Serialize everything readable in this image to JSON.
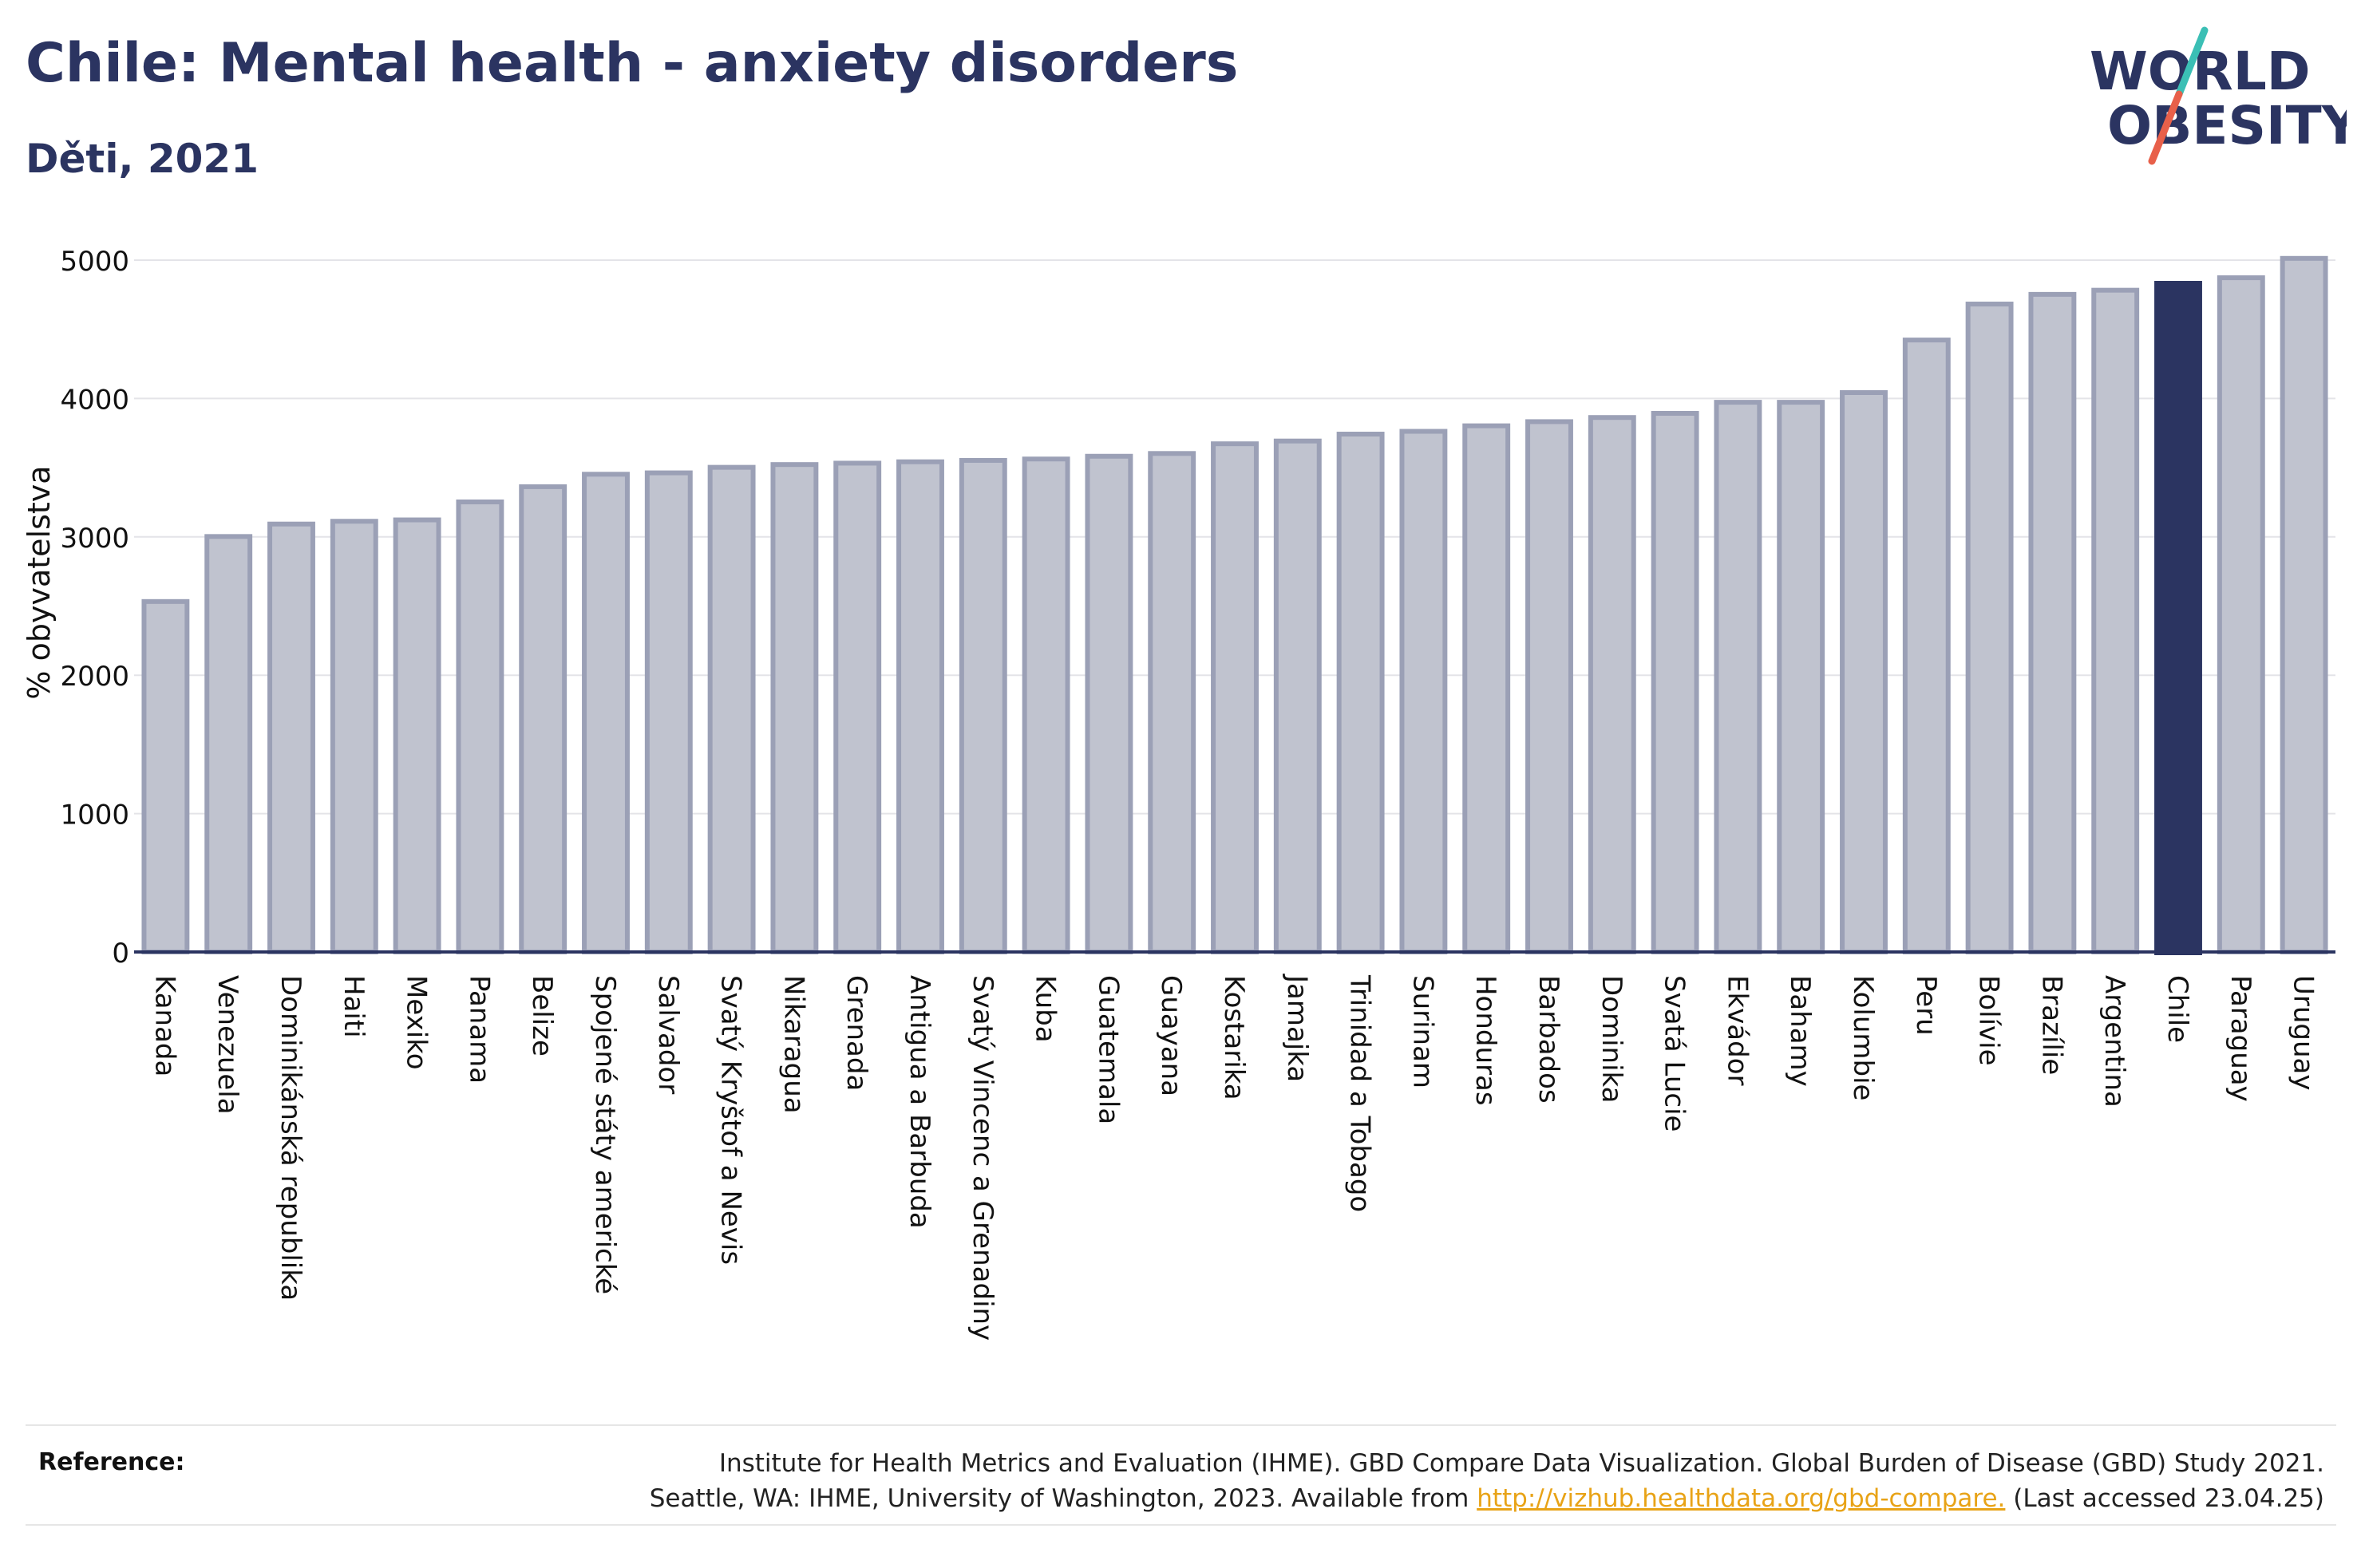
{
  "title": "Chile: Mental health - anxiety disorders",
  "subtitle": "Děti, 2021",
  "logo": {
    "line1": "WORLD",
    "line2": "OBESITY"
  },
  "colors": {
    "bar": "#c0c3cf",
    "bar_border": "#9ba0b6",
    "highlight": "#2b3461",
    "title": "#2b3461",
    "logo_text": "#2b3461",
    "logo_slash_teal": "#3bbfb5",
    "logo_slash_coral": "#e8604a",
    "link": "#e8a317"
  },
  "chart_data": {
    "type": "bar",
    "ylabel": "% obyvatelstva",
    "xlabel": "",
    "ylim": [
      0,
      5200
    ],
    "yticks": [
      0,
      1000,
      2000,
      3000,
      4000,
      5000
    ],
    "grid": true,
    "highlight": "Chile",
    "categories": [
      "Kanada",
      "Venezuela",
      "Dominikánská republika",
      "Haiti",
      "Mexiko",
      "Panama",
      "Belize",
      "Spojené státy americké",
      "Salvador",
      "Svatý Kryštof a Nevis",
      "Nikaragua",
      "Grenada",
      "Antigua a Barbuda",
      "Svatý Vincenc a Grenadiny",
      "Kuba",
      "Guatemala",
      "Guayana",
      "Kostarika",
      "Jamajka",
      "Trinidad a Tobago",
      "Surinam",
      "Honduras",
      "Barbados",
      "Dominika",
      "Svatá Lucie",
      "Ekvádor",
      "Bahamy",
      "Kolumbie",
      "Peru",
      "Bolívie",
      "Brazílie",
      "Argentina",
      "Chile",
      "Paraguay",
      "Uruguay"
    ],
    "values": [
      2550,
      3020,
      3110,
      3130,
      3140,
      3270,
      3380,
      3470,
      3480,
      3520,
      3540,
      3550,
      3560,
      3570,
      3580,
      3600,
      3620,
      3690,
      3710,
      3760,
      3780,
      3820,
      3850,
      3880,
      3910,
      3990,
      3990,
      4060,
      4440,
      4700,
      4770,
      4800,
      4850,
      4890,
      5030
    ]
  },
  "footer": {
    "reference_label": "Reference:",
    "reference_line1": "Institute for Health Metrics and Evaluation (IHME). GBD Compare Data Visualization. Global Burden of Disease (GBD) Study 2021.",
    "reference_line2_before": "Seattle, WA: IHME, University of Washington, 2023. Available from ",
    "reference_link": "http://vizhub.healthdata.org/gbd-compare.",
    "reference_line2_after": " (Last accessed 23.04.25)"
  }
}
